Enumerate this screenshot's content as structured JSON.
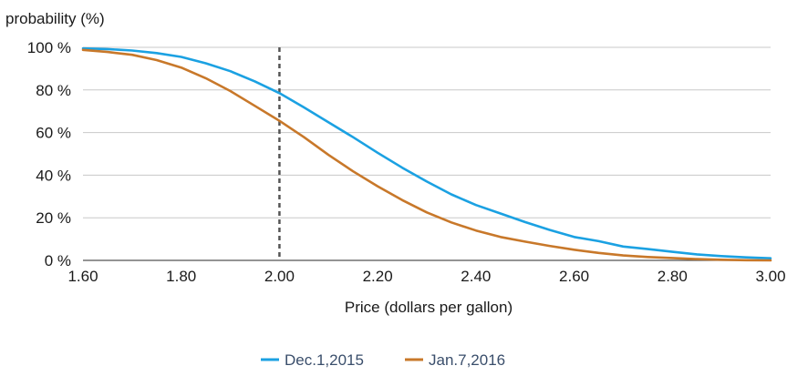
{
  "chart_data": {
    "type": "line",
    "ylabel": "probability (%)",
    "xlabel": "Price (dollars per gallon)",
    "xlim": [
      1.6,
      3.0
    ],
    "ylim": [
      0,
      100
    ],
    "x_ticks": [
      "1.60",
      "1.80",
      "2.00",
      "2.20",
      "2.40",
      "2.60",
      "2.80",
      "3.00"
    ],
    "y_ticks": [
      "0 %",
      "20 %",
      "40 %",
      "60 %",
      "80 %",
      "100 %"
    ],
    "grid": "horizontal",
    "reference_line_x": 2.0,
    "legend_position": "bottom",
    "series": [
      {
        "name": "Dec.1,2015",
        "color": "#1ba1e2",
        "x": [
          1.6,
          1.65,
          1.7,
          1.75,
          1.8,
          1.85,
          1.9,
          1.95,
          2.0,
          2.05,
          2.1,
          2.15,
          2.2,
          2.25,
          2.3,
          2.35,
          2.4,
          2.45,
          2.5,
          2.55,
          2.6,
          2.65,
          2.7,
          2.75,
          2.8,
          2.85,
          2.9,
          2.95,
          3.0
        ],
        "values": [
          99.5,
          99.2,
          98.5,
          97.3,
          95.5,
          92.5,
          88.8,
          84.0,
          78.5,
          71.8,
          64.8,
          57.8,
          50.5,
          43.5,
          37.0,
          31.0,
          26.0,
          22.0,
          18.0,
          14.3,
          11.0,
          9.0,
          6.5,
          5.3,
          4.0,
          2.8,
          2.0,
          1.4,
          1.0
        ]
      },
      {
        "name": "Jan.7,2016",
        "color": "#c8782a",
        "x": [
          1.6,
          1.65,
          1.7,
          1.75,
          1.8,
          1.85,
          1.9,
          1.95,
          2.0,
          2.05,
          2.1,
          2.15,
          2.2,
          2.25,
          2.3,
          2.35,
          2.4,
          2.45,
          2.5,
          2.55,
          2.6,
          2.65,
          2.7,
          2.75,
          2.8,
          2.85,
          2.9,
          2.95,
          3.0
        ],
        "values": [
          98.8,
          97.8,
          96.5,
          94.0,
          90.5,
          85.5,
          79.5,
          72.5,
          65.5,
          57.8,
          49.5,
          41.8,
          34.8,
          28.3,
          22.5,
          17.8,
          14.0,
          11.0,
          8.8,
          6.8,
          5.0,
          3.5,
          2.3,
          1.6,
          1.1,
          0.6,
          0.3,
          0.1,
          0.0
        ]
      }
    ]
  }
}
